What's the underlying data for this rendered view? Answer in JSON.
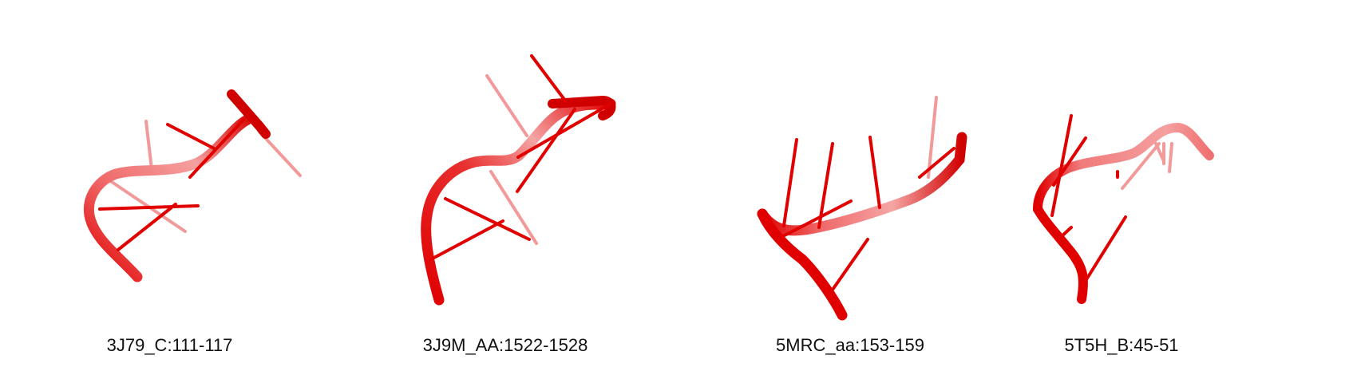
{
  "figure": {
    "colors": {
      "strand_front": "#e00000",
      "strand_back": "#f08a8a",
      "edge": "#9a0000",
      "background": "#ffffff"
    },
    "panels": [
      {
        "label": "3J79_C:111-117"
      },
      {
        "label": "3J9M_AA:1522-1528"
      },
      {
        "label": "5MRC_aa:153-159"
      },
      {
        "label": "5T5H_B:45-51"
      }
    ]
  }
}
